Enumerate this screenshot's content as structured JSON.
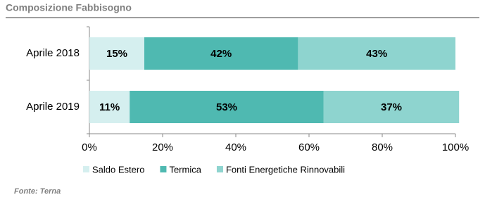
{
  "chart_data": {
    "type": "stacked-barh",
    "title": "Composizione Fabbisogno",
    "source": "Fonte: Terna",
    "categories": [
      "Aprile 2018",
      "Aprile 2019"
    ],
    "series": [
      {
        "name": "Saldo Estero",
        "color": "#d5efef",
        "values": [
          15,
          11
        ],
        "value_labels": [
          "15%",
          "11%"
        ]
      },
      {
        "name": "Termica",
        "color": "#4fb9b1",
        "values": [
          42,
          53
        ],
        "value_labels": [
          "42%",
          "53%"
        ]
      },
      {
        "name": "Fonti Energetiche Rinnovabili",
        "color": "#8ed4cf",
        "values": [
          43,
          37
        ],
        "value_labels": [
          "43%",
          "37%"
        ]
      }
    ],
    "xlim": [
      0,
      100
    ],
    "xticks": [
      {
        "value": 0,
        "label": "0%"
      },
      {
        "value": 20,
        "label": "20%"
      },
      {
        "value": 40,
        "label": "40%"
      },
      {
        "value": 60,
        "label": "60%"
      },
      {
        "value": 80,
        "label": "80%"
      },
      {
        "value": 100,
        "label": "100%"
      }
    ],
    "legend": "bottom"
  }
}
